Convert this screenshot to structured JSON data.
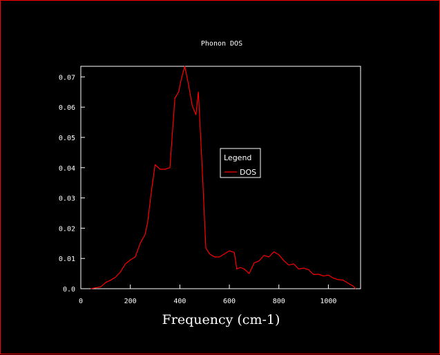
{
  "chart_data": {
    "type": "line",
    "title": "Phonon DOS",
    "xlabel": "Frequency (cm-1)",
    "ylabel": "",
    "xlim": [
      0,
      1130
    ],
    "ylim": [
      0,
      0.0735
    ],
    "xticks": [
      0,
      200,
      400,
      600,
      800,
      1000
    ],
    "xtick_labels": [
      "0",
      "200",
      "400",
      "600",
      "800",
      "1000"
    ],
    "yticks": [
      0,
      0.01,
      0.02,
      0.03,
      0.04,
      0.05,
      0.06,
      0.07
    ],
    "ytick_labels": [
      "0.0",
      "0.01",
      "0.02",
      "0.03",
      "0.04",
      "0.05",
      "0.06",
      "0.07"
    ],
    "grid": false,
    "legend": {
      "title": "Legend",
      "placement": "center-right"
    },
    "series": [
      {
        "name": "DOS",
        "color": "#ff0000",
        "x": [
          40,
          60,
          80,
          100,
          120,
          140,
          160,
          180,
          200,
          220,
          240,
          260,
          270,
          285,
          300,
          320,
          340,
          360,
          380,
          395,
          405,
          420,
          435,
          450,
          465,
          475,
          490,
          505,
          520,
          540,
          560,
          580,
          600,
          620,
          630,
          645,
          660,
          680,
          700,
          720,
          740,
          760,
          780,
          800,
          820,
          840,
          860,
          880,
          900,
          920,
          940,
          960,
          980,
          1000,
          1020,
          1040,
          1060,
          1080,
          1100,
          1110
        ],
        "y": [
          0.0,
          0.0003,
          0.0006,
          0.002,
          0.0028,
          0.0038,
          0.0055,
          0.0082,
          0.0095,
          0.0105,
          0.015,
          0.018,
          0.022,
          0.032,
          0.041,
          0.0395,
          0.0395,
          0.04,
          0.063,
          0.065,
          0.069,
          0.0735,
          0.0675,
          0.0605,
          0.0575,
          0.065,
          0.0405,
          0.0135,
          0.0115,
          0.0105,
          0.0105,
          0.0115,
          0.0125,
          0.012,
          0.0065,
          0.007,
          0.0065,
          0.005,
          0.0085,
          0.0092,
          0.011,
          0.0105,
          0.0122,
          0.0112,
          0.0093,
          0.0078,
          0.0082,
          0.0065,
          0.0068,
          0.0063,
          0.0047,
          0.0048,
          0.0042,
          0.0045,
          0.0035,
          0.003,
          0.0028,
          0.0018,
          0.0009,
          0.0
        ]
      }
    ]
  }
}
